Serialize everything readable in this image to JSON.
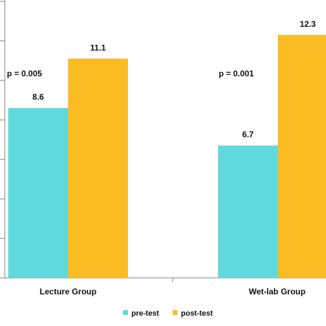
{
  "chart_data": {
    "type": "bar",
    "categories": [
      "Lecture Group",
      "Wet-lab Group"
    ],
    "series": [
      {
        "name": "pre-test",
        "values": [
          8.6,
          6.7
        ],
        "color": "#5fd9dc"
      },
      {
        "name": "post-test",
        "values": [
          11.1,
          12.3
        ],
        "color": "#fbbb22"
      }
    ],
    "data_labels": [
      [
        "8.6",
        "11.1"
      ],
      [
        "6.7",
        "12.3"
      ]
    ],
    "annotations": [
      "p = 0.005",
      "p = 0.001"
    ],
    "ylim": [
      0,
      14
    ],
    "grid": false,
    "legend": "bottom-center",
    "axis_color": "#808080"
  }
}
